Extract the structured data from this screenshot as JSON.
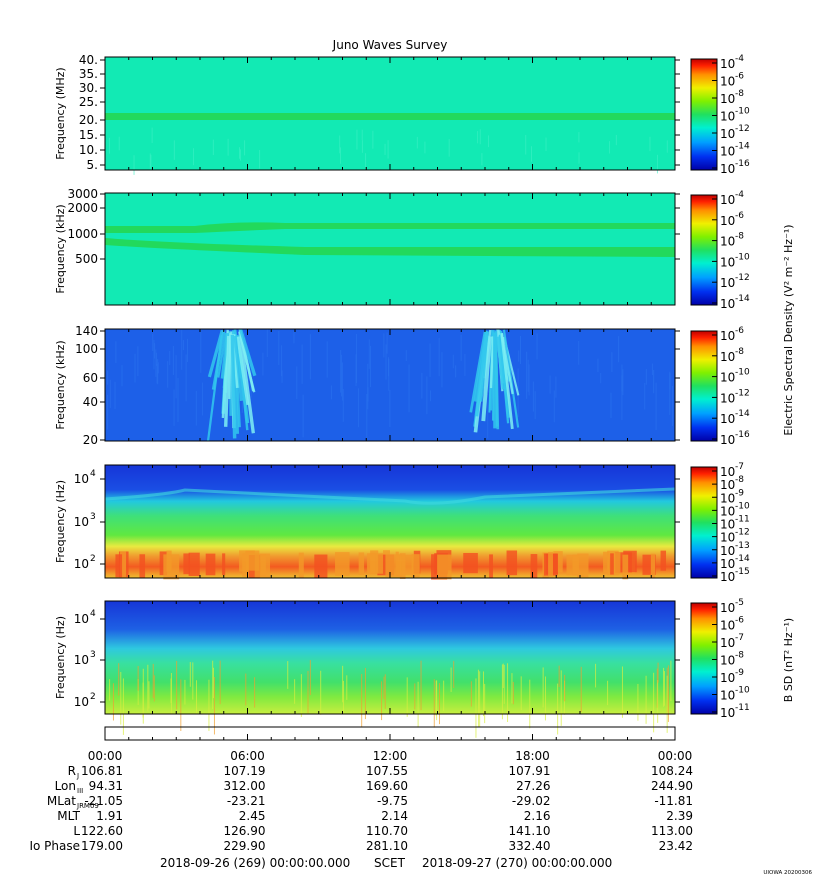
{
  "chart_data": {
    "type": "heatmap",
    "title": "Juno Waves Survey",
    "time_ticks": [
      "00:00",
      "06:00",
      "12:00",
      "18:00",
      "00:00"
    ],
    "ephemeris": {
      "rows": [
        {
          "label": "R",
          "sub": "J",
          "values": [
            "106.81",
            "107.19",
            "107.55",
            "107.91",
            "108.24"
          ]
        },
        {
          "label": "Lon",
          "sub": "III",
          "values": [
            "94.31",
            "312.00",
            "169.60",
            "27.26",
            "244.90"
          ]
        },
        {
          "label": "MLat",
          "sub": "JRM09",
          "values": [
            "-21.05",
            "-23.21",
            "-9.75",
            "-29.02",
            "-11.81"
          ]
        },
        {
          "label": "MLT",
          "sub": "",
          "values": [
            "1.91",
            "2.45",
            "2.14",
            "2.16",
            "2.39"
          ]
        },
        {
          "label": "L",
          "sub": "",
          "values": [
            "122.60",
            "126.90",
            "110.70",
            "141.10",
            "113.00"
          ]
        },
        {
          "label": "Io Phase",
          "sub": "",
          "values": [
            "179.00",
            "229.90",
            "281.10",
            "332.40",
            "23.42"
          ]
        }
      ]
    },
    "footer": {
      "start": "2018-09-26 (269) 00:00:00.000",
      "center": "SCET",
      "end": "2018-09-27 (270) 00:00:00.000"
    },
    "credit": "UIOWA 20200306",
    "panels": [
      {
        "ylabel": "Frequency (MHz)",
        "ytick_labels": [
          "40.",
          "35.",
          "30.",
          "25.",
          "20.",
          "15.",
          "10.",
          "5."
        ],
        "colorbar_labels": [
          "-4",
          "-6",
          "-8",
          "-10",
          "-12",
          "-14",
          "-16"
        ],
        "colorbar_title": "",
        "background": "#12eab4",
        "bands": [
          {
            "y": 21.5,
            "width": 1.2,
            "color": "#22d95c"
          }
        ]
      },
      {
        "ylabel": "Frequency (kHz)",
        "ytick_labels": [
          "3000",
          "2000",
          "1000",
          "500"
        ],
        "colorbar_labels": [
          "-4",
          "-6",
          "-8",
          "-10",
          "-12",
          "-14"
        ],
        "colorbar_title": "Electric Spectral Density",
        "colorbar_unit": "V² m⁻² Hz⁻¹",
        "background": "#12eab4",
        "bands": [
          {
            "y": 1300,
            "color": "#22d95c"
          },
          {
            "y": 700,
            "color": "#22d95c"
          }
        ]
      },
      {
        "ylabel": "Frequency (kHz)",
        "ytick_labels": [
          "140",
          "100",
          "60",
          "40",
          "20"
        ],
        "colorbar_labels": [
          "-6",
          "-8",
          "-10",
          "-12",
          "-14",
          "-16"
        ],
        "colorbar_title": "",
        "background": "#1d60e8",
        "bursts": [
          {
            "center_hour": 5.3,
            "color": "#32c8ee"
          },
          {
            "center_hour": 16.4,
            "color": "#32c8ee"
          }
        ]
      },
      {
        "ylabel": "Frequency (Hz)",
        "ytick_labels": [
          "10",
          "10",
          "10"
        ],
        "ytick_exps": [
          "4",
          "3",
          "2"
        ],
        "colorbar_labels": [
          "-7",
          "-8",
          "-9",
          "-10",
          "-11",
          "-12",
          "-13",
          "-14",
          "-15"
        ],
        "colorbar_title": "",
        "layers": [
          "#1636d8",
          "#22d4d8",
          "#40e070",
          "#f0e840",
          "#f36020"
        ]
      },
      {
        "ylabel": "Frequency (Hz)",
        "ytick_labels": [
          "10",
          "10",
          "10"
        ],
        "ytick_exps": [
          "4",
          "3",
          "2"
        ],
        "colorbar_labels": [
          "-5",
          "-6",
          "-7",
          "-8",
          "-9",
          "-10",
          "-11"
        ],
        "colorbar_title": "B SD",
        "colorbar_unit": "nT² Hz⁻¹",
        "layers": [
          "#1a3ad8",
          "#30c8e0",
          "#40e070",
          "#a0ee40"
        ]
      }
    ]
  },
  "colors": {
    "jet": [
      "#0000a8",
      "#0030f0",
      "#00a0ff",
      "#00f0d0",
      "#20e060",
      "#80f000",
      "#f0f000",
      "#ff9000",
      "#ff2000",
      "#c00000"
    ]
  }
}
